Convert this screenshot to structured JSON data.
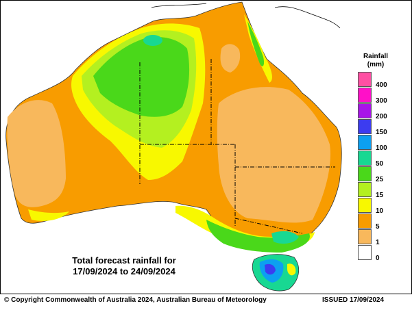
{
  "caption": {
    "line1": "Total forecast rainfall for",
    "line2": "17/09/2024 to 24/09/2024"
  },
  "legend": {
    "title": "Rainfall",
    "unit": "(mm)",
    "classes": [
      {
        "label": "400",
        "color": "#ff4fa3"
      },
      {
        "label": "300",
        "color": "#ff10c8"
      },
      {
        "label": "200",
        "color": "#a814e8"
      },
      {
        "label": "150",
        "color": "#3c3cf0"
      },
      {
        "label": "100",
        "color": "#0ca0f0"
      },
      {
        "label": "50",
        "color": "#18d892"
      },
      {
        "label": "25",
        "color": "#4ad81a"
      },
      {
        "label": "15",
        "color": "#b4f020"
      },
      {
        "label": "10",
        "color": "#f8f800"
      },
      {
        "label": "5",
        "color": "#f89c00"
      },
      {
        "label": "1",
        "color": "#f8b85c"
      },
      {
        "label": "0",
        "color": "#ffffff"
      }
    ]
  },
  "footer": {
    "copyright": "© Copyright Commonwealth of Australia 2024, Australian Bureau of Meteorology",
    "issued": "ISSUED 17/09/2024"
  }
}
